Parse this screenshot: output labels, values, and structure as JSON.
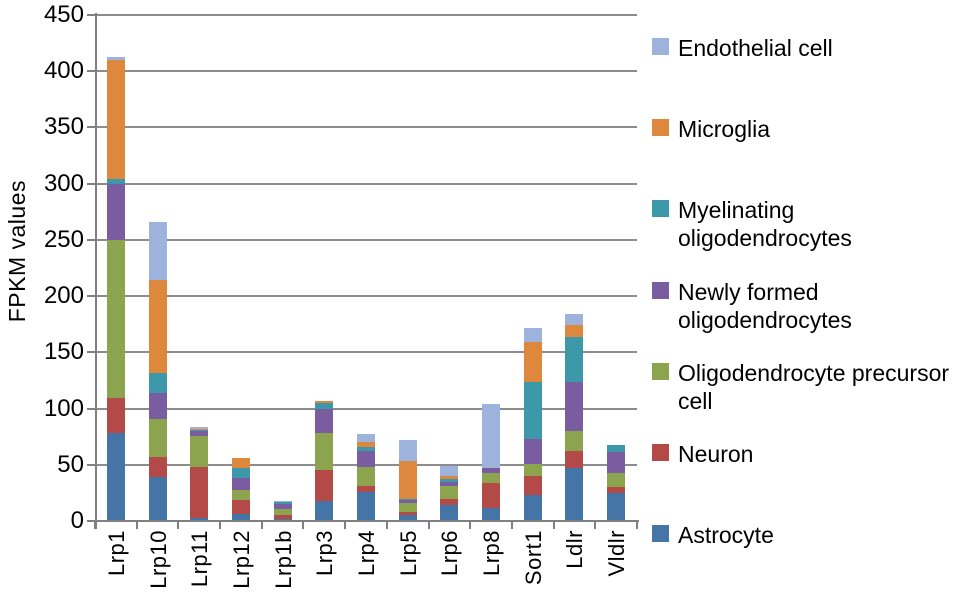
{
  "chart_data": {
    "type": "bar",
    "stacked": true,
    "orientation": "vertical",
    "title": "",
    "xlabel": "",
    "ylabel": "FPKM values",
    "ylim": [
      0,
      450
    ],
    "ytick_step": 50,
    "grid": true,
    "legend_position": "right",
    "categories": [
      "Lrp1",
      "Lrp10",
      "Lrp11",
      "Lrp12",
      "Lrp1b",
      "Lrp3",
      "Lrp4",
      "Lrp5",
      "Lrp6",
      "Lrp8",
      "Sort1",
      "Ldlr",
      "Vldlr"
    ],
    "series": [
      {
        "name": "Astrocyte",
        "color": "#4575A7",
        "values": [
          78,
          39,
          3,
          6,
          2,
          18,
          26,
          5,
          14,
          12,
          23,
          47,
          25
        ]
      },
      {
        "name": "Neuron",
        "color": "#B34A47",
        "values": [
          31,
          18,
          45,
          13,
          3,
          27,
          5,
          3,
          6,
          22,
          17,
          15,
          5
        ]
      },
      {
        "name": "Oligodendrocyte precursor cell",
        "color": "#8CA44D",
        "values": [
          141,
          34,
          28,
          9,
          6,
          33,
          17,
          8,
          11,
          9,
          11,
          18,
          13
        ]
      },
      {
        "name": "Newly formed oligodendrocytes",
        "color": "#7A5DA0",
        "values": [
          50,
          23,
          4,
          10,
          4,
          22,
          14,
          3,
          4,
          4,
          22,
          44,
          18
        ]
      },
      {
        "name": "Myelinating oligodendrocytes",
        "color": "#3D98A9",
        "values": [
          4,
          18,
          1,
          9,
          2,
          5,
          4,
          1,
          2,
          0,
          51,
          40,
          7
        ]
      },
      {
        "name": "Microglia",
        "color": "#DE883D",
        "values": [
          106,
          82,
          1,
          9,
          0,
          2,
          4,
          33,
          3,
          0,
          35,
          10,
          0
        ]
      },
      {
        "name": "Endothelial cell",
        "color": "#9DB3DC",
        "values": [
          3,
          52,
          2,
          0,
          1,
          0,
          7,
          19,
          9,
          57,
          13,
          10,
          0
        ]
      }
    ],
    "legend_order_top_to_bottom": [
      "Endothelial cell",
      "Microglia",
      "Myelinating oligodendrocytes",
      "Newly formed oligodendrocytes",
      "Oligodendrocyte precursor cell",
      "Neuron",
      "Astrocyte"
    ]
  }
}
